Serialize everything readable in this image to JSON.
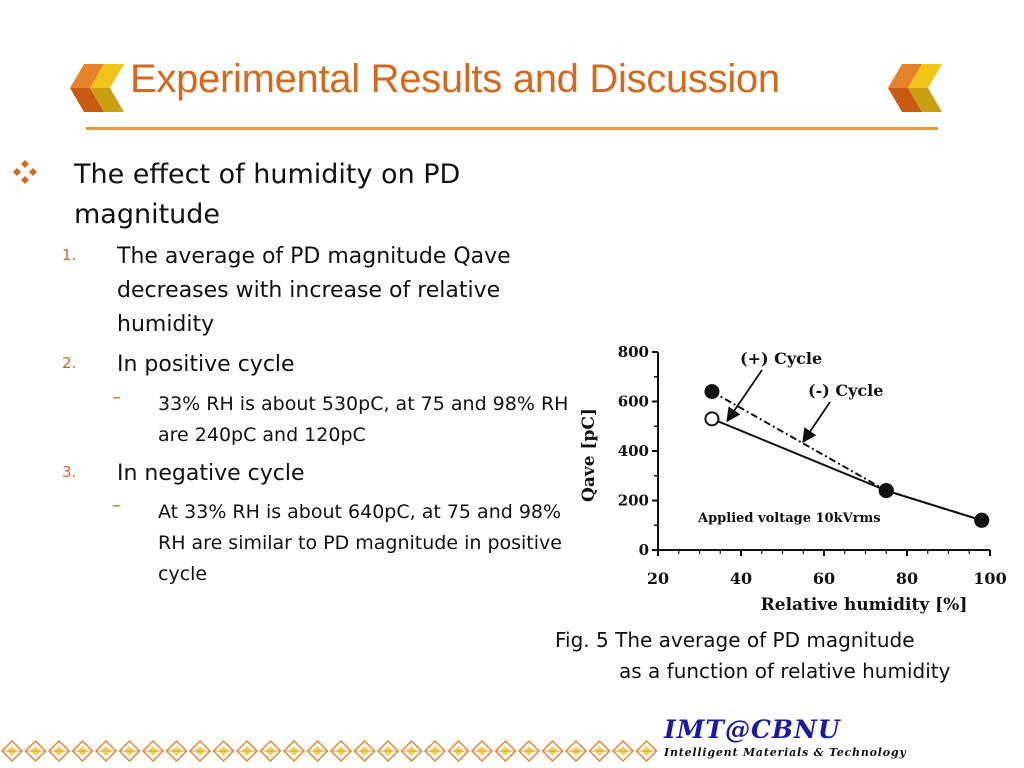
{
  "slide": {
    "title": "Experimental Results and Discussion",
    "main_bullet": "The effect of humidity on PD magnitude",
    "items": [
      {
        "number": "1.",
        "text": "The average of PD magnitude Qave decreases with increase of relative humidity"
      },
      {
        "number": "2.",
        "text": "In positive cycle",
        "sub": {
          "dash": "–",
          "text": "33% RH is about 530pC, at 75 and 98% RH are 240pC and 120pC"
        }
      },
      {
        "number": "3.",
        "text": "In negative cycle",
        "sub": {
          "dash": "–",
          "text": "At 33% RH is about 640pC, at 75 and 98% RH are similar to PD magnitude in positive cycle"
        }
      }
    ],
    "caption_line1": "Fig. 5 The average of PD magnitude",
    "caption_line2": "as a function of relative humidity",
    "logo": {
      "main": "IMT@CBNU",
      "sub": "Intelligent Materials & Technology"
    }
  },
  "colors": {
    "title": "#D2691E",
    "accent_orange": "#E8822A",
    "accent_yellow": "#F2C418",
    "logo_blue": "#1A1A9E"
  },
  "chart_data": {
    "type": "line",
    "title": "",
    "xlabel": "Relative humidity [%]",
    "ylabel": "Qave [pC]",
    "xlim": [
      20,
      100
    ],
    "ylim": [
      0,
      800
    ],
    "x_ticks": [
      20,
      40,
      60,
      80,
      100
    ],
    "y_ticks": [
      0,
      200,
      400,
      600,
      800
    ],
    "grid": false,
    "series": [
      {
        "name": "(+) Cycle",
        "marker": "open-circle",
        "line": "solid",
        "x": [
          33,
          75,
          98
        ],
        "y": [
          530,
          240,
          120
        ]
      },
      {
        "name": "(-) Cycle",
        "marker": "filled-circle",
        "line": "dash-dot",
        "x": [
          33,
          75,
          98
        ],
        "y": [
          640,
          240,
          120
        ]
      }
    ],
    "annotations": [
      {
        "text": "(+) Cycle",
        "arrow_to": [
          36,
          510
        ]
      },
      {
        "text": "(-) Cycle",
        "arrow_to": [
          55,
          430
        ]
      },
      {
        "text": "Applied voltage 10kVrms"
      }
    ]
  }
}
